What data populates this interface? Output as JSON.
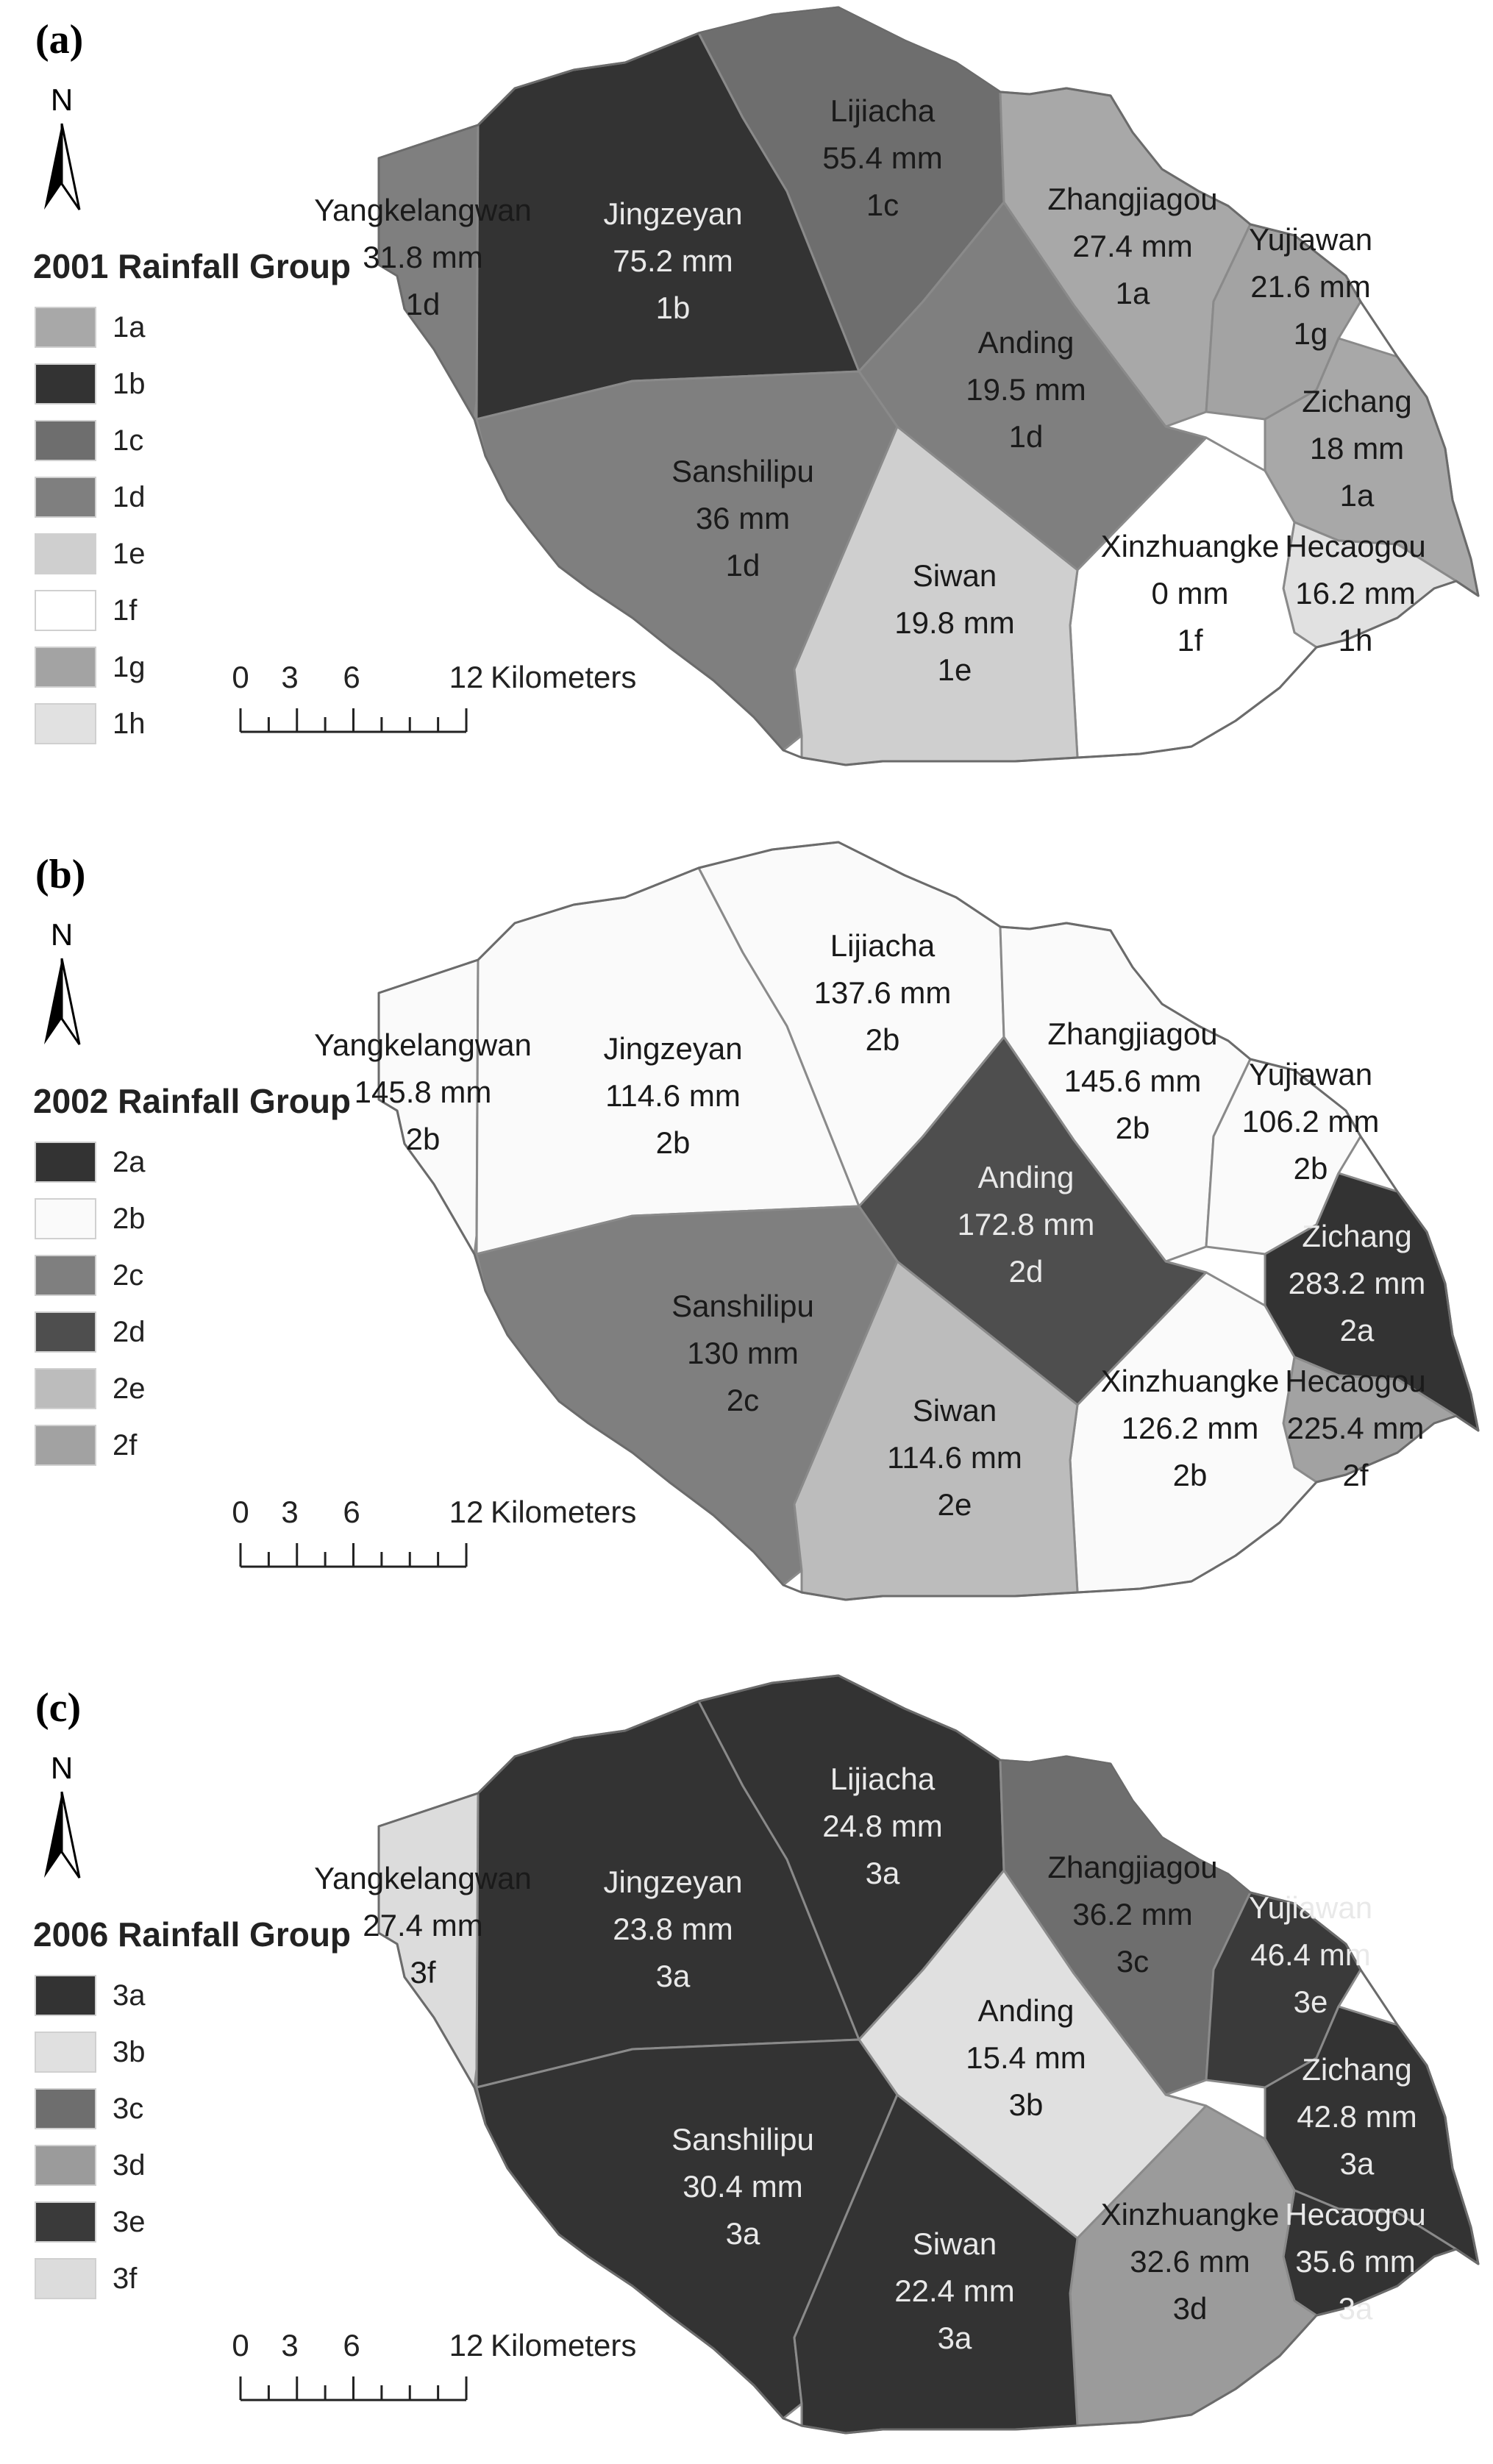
{
  "scale_bar": {
    "ticks": [
      "0",
      "3",
      "6",
      "12"
    ],
    "unit": "Kilometers"
  },
  "north_label": "N",
  "panels": [
    {
      "tag": "(a)",
      "legend_title": "2001 Rainfall Group",
      "legend": [
        {
          "code": "1a",
          "color": "#a8a8a8"
        },
        {
          "code": "1b",
          "color": "#333333"
        },
        {
          "code": "1c",
          "color": "#6e6e6e"
        },
        {
          "code": "1d",
          "color": "#7f7f7f"
        },
        {
          "code": "1e",
          "color": "#cfcfcf"
        },
        {
          "code": "1f",
          "color": "#ffffff"
        },
        {
          "code": "1g",
          "color": "#a3a3a3"
        },
        {
          "code": "1h",
          "color": "#e1e1e1"
        }
      ],
      "regions": {
        "Yangkelangwan": {
          "name": "Yangkelangwan",
          "rain": "31.8 mm",
          "group": "1d",
          "color": "#7f7f7f"
        },
        "Jingzeyan": {
          "name": "Jingzeyan",
          "rain": "75.2 mm",
          "group": "1b",
          "color": "#333333"
        },
        "Lijiacha": {
          "name": "Lijiacha",
          "rain": "55.4 mm",
          "group": "1c",
          "color": "#6e6e6e"
        },
        "Zhangjiagou": {
          "name": "Zhangjiagou",
          "rain": "27.4 mm",
          "group": "1a",
          "color": "#a8a8a8"
        },
        "Yujiawan": {
          "name": "Yujiawan",
          "rain": "21.6 mm",
          "group": "1g",
          "color": "#a3a3a3"
        },
        "Anding": {
          "name": "Anding",
          "rain": "19.5 mm",
          "group": "1d",
          "color": "#7f7f7f"
        },
        "Zichang": {
          "name": "Zichang",
          "rain": "18 mm",
          "group": "1a",
          "color": "#a8a8a8"
        },
        "Sanshilipu": {
          "name": "Sanshilipu",
          "rain": "36 mm",
          "group": "1d",
          "color": "#7f7f7f"
        },
        "Siwan": {
          "name": "Siwan",
          "rain": "19.8 mm",
          "group": "1e",
          "color": "#cfcfcf"
        },
        "Xinzhuangke": {
          "name": "Xinzhuangke",
          "rain": "0 mm",
          "group": "1f",
          "color": "#ffffff"
        },
        "Hecaogou": {
          "name": "Hecaogou",
          "rain": "16.2 mm",
          "group": "1h",
          "color": "#e1e1e1"
        }
      }
    },
    {
      "tag": "(b)",
      "legend_title": "2002 Rainfall Group",
      "legend": [
        {
          "code": "2a",
          "color": "#333333"
        },
        {
          "code": "2b",
          "color": "#fafafa"
        },
        {
          "code": "2c",
          "color": "#7f7f7f"
        },
        {
          "code": "2d",
          "color": "#4e4e4e"
        },
        {
          "code": "2e",
          "color": "#bcbcbc"
        },
        {
          "code": "2f",
          "color": "#a2a2a2"
        }
      ],
      "regions": {
        "Yangkelangwan": {
          "name": "Yangkelangwan",
          "rain": "145.8 mm",
          "group": "2b",
          "color": "#fafafa"
        },
        "Jingzeyan": {
          "name": "Jingzeyan",
          "rain": "114.6 mm",
          "group": "2b",
          "color": "#fafafa"
        },
        "Lijiacha": {
          "name": "Lijiacha",
          "rain": "137.6 mm",
          "group": "2b",
          "color": "#fafafa"
        },
        "Zhangjiagou": {
          "name": "Zhangjiagou",
          "rain": "145.6 mm",
          "group": "2b",
          "color": "#fafafa"
        },
        "Yujiawan": {
          "name": "Yujiawan",
          "rain": "106.2 mm",
          "group": "2b",
          "color": "#fafafa"
        },
        "Anding": {
          "name": "Anding",
          "rain": "172.8 mm",
          "group": "2d",
          "color": "#4e4e4e"
        },
        "Zichang": {
          "name": "Zichang",
          "rain": "283.2 mm",
          "group": "2a",
          "color": "#333333"
        },
        "Sanshilipu": {
          "name": "Sanshilipu",
          "rain": "130 mm",
          "group": "2c",
          "color": "#7f7f7f"
        },
        "Siwan": {
          "name": "Siwan",
          "rain": "114.6 mm",
          "group": "2e",
          "color": "#bcbcbc"
        },
        "Xinzhuangke": {
          "name": "Xinzhuangke",
          "rain": "126.2 mm",
          "group": "2b",
          "color": "#fafafa"
        },
        "Hecaogou": {
          "name": "Hecaogou",
          "rain": "225.4 mm",
          "group": "2f",
          "color": "#a2a2a2"
        }
      }
    },
    {
      "tag": "(c)",
      "legend_title": "2006 Rainfall Group",
      "legend": [
        {
          "code": "3a",
          "color": "#333333"
        },
        {
          "code": "3b",
          "color": "#e0e0e0"
        },
        {
          "code": "3c",
          "color": "#6e6e6e"
        },
        {
          "code": "3d",
          "color": "#9b9b9b"
        },
        {
          "code": "3e",
          "color": "#3a3a3a"
        },
        {
          "code": "3f",
          "color": "#dcdcdc"
        }
      ],
      "regions": {
        "Yangkelangwan": {
          "name": "Yangkelangwan",
          "rain": "27.4 mm",
          "group": "3f",
          "color": "#dcdcdc"
        },
        "Jingzeyan": {
          "name": "Jingzeyan",
          "rain": "23.8 mm",
          "group": "3a",
          "color": "#333333"
        },
        "Lijiacha": {
          "name": "Lijiacha",
          "rain": "24.8 mm",
          "group": "3a",
          "color": "#333333"
        },
        "Zhangjiagou": {
          "name": "Zhangjiagou",
          "rain": "36.2 mm",
          "group": "3c",
          "color": "#6e6e6e"
        },
        "Yujiawan": {
          "name": "Yujiawan",
          "rain": "46.4 mm",
          "group": "3e",
          "color": "#3a3a3a"
        },
        "Anding": {
          "name": "Anding",
          "rain": "15.4 mm",
          "group": "3b",
          "color": "#e0e0e0"
        },
        "Zichang": {
          "name": "Zichang",
          "rain": "42.8 mm",
          "group": "3a",
          "color": "#333333"
        },
        "Sanshilipu": {
          "name": "Sanshilipu",
          "rain": "30.4 mm",
          "group": "3a",
          "color": "#333333"
        },
        "Siwan": {
          "name": "Siwan",
          "rain": "22.4 mm",
          "group": "3a",
          "color": "#333333"
        },
        "Xinzhuangke": {
          "name": "Xinzhuangke",
          "rain": "32.6 mm",
          "group": "3d",
          "color": "#9b9b9b"
        },
        "Hecaogou": {
          "name": "Hecaogou",
          "rain": "35.6 mm",
          "group": "3a",
          "color": "#333333"
        }
      }
    }
  ]
}
